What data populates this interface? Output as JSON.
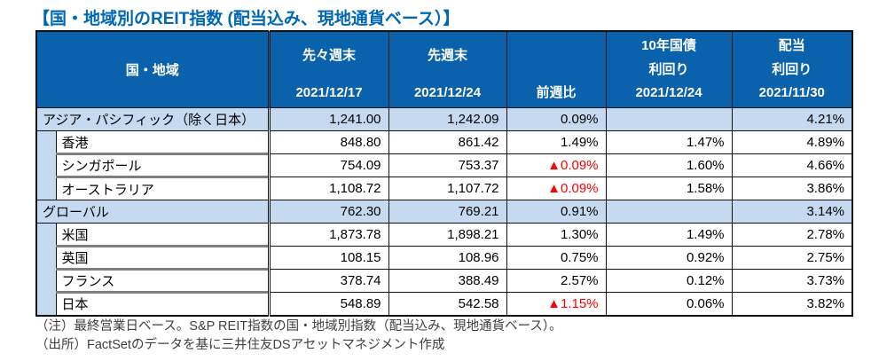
{
  "title": "【国・地域別のREIT指数 (配当込み、現地通貨ベース）】",
  "colors": {
    "title_text": "#0067B5",
    "header_bg": "#0A62AC",
    "header_text": "#FFFFFF",
    "group_row_bg": "#C5D9F1",
    "negative_text": "#FF0000",
    "grid_border": "#111111",
    "sub_separator": "#7F7F7F"
  },
  "table": {
    "columns": [
      {
        "label": "国・地域"
      },
      {
        "label": "先々週末",
        "date": "2021/12/17"
      },
      {
        "label": "先週末",
        "date": "2021/12/24"
      },
      {
        "label": "前週比"
      },
      {
        "label_line1": "10年国債",
        "label_line2": "利回り",
        "date": "2021/12/24"
      },
      {
        "label_line1": "配当",
        "label_line2": "利回り",
        "date": "2021/11/30"
      }
    ],
    "rows": [
      {
        "type": "group",
        "label": "アジア・パシフィック（除く日本）",
        "prev2": "1,241.00",
        "prev": "1,242.09",
        "wow": "0.09%",
        "bond": "",
        "div": "4.21%"
      },
      {
        "type": "sub",
        "label": "香港",
        "prev2": "848.80",
        "prev": "861.42",
        "wow": "1.49%",
        "bond": "1.47%",
        "div": "4.89%"
      },
      {
        "type": "sub",
        "label": "シンガポール",
        "prev2": "754.09",
        "prev": "753.37",
        "wow": "▲0.09%",
        "bond": "1.60%",
        "div": "4.66%"
      },
      {
        "type": "sub",
        "label": "オーストラリア",
        "prev2": "1,108.72",
        "prev": "1,107.72",
        "wow": "▲0.09%",
        "bond": "1.58%",
        "div": "3.86%"
      },
      {
        "type": "group",
        "label": "グローバル",
        "prev2": "762.30",
        "prev": "769.21",
        "wow": "0.91%",
        "bond": "",
        "div": "3.14%"
      },
      {
        "type": "sub",
        "label": "米国",
        "prev2": "1,873.78",
        "prev": "1,898.21",
        "wow": "1.30%",
        "bond": "1.49%",
        "div": "2.78%"
      },
      {
        "type": "sub",
        "label": "英国",
        "prev2": "108.15",
        "prev": "108.96",
        "wow": "0.75%",
        "bond": "0.92%",
        "div": "2.75%"
      },
      {
        "type": "sub",
        "label": "フランス",
        "prev2": "378.74",
        "prev": "388.49",
        "wow": "2.57%",
        "bond": "0.12%",
        "div": "3.73%"
      },
      {
        "type": "sub",
        "label": "日本",
        "prev2": "548.89",
        "prev": "542.58",
        "wow": "▲1.15%",
        "bond": "0.06%",
        "div": "3.82%"
      }
    ]
  },
  "notes": [
    "（注）最終営業日ベース。S&P REIT指数の国・地域別指数（配当込み、現地通貨ベース）。",
    "（出所）FactSetのデータを基に三井住友DSアセットマネジメント作成"
  ]
}
